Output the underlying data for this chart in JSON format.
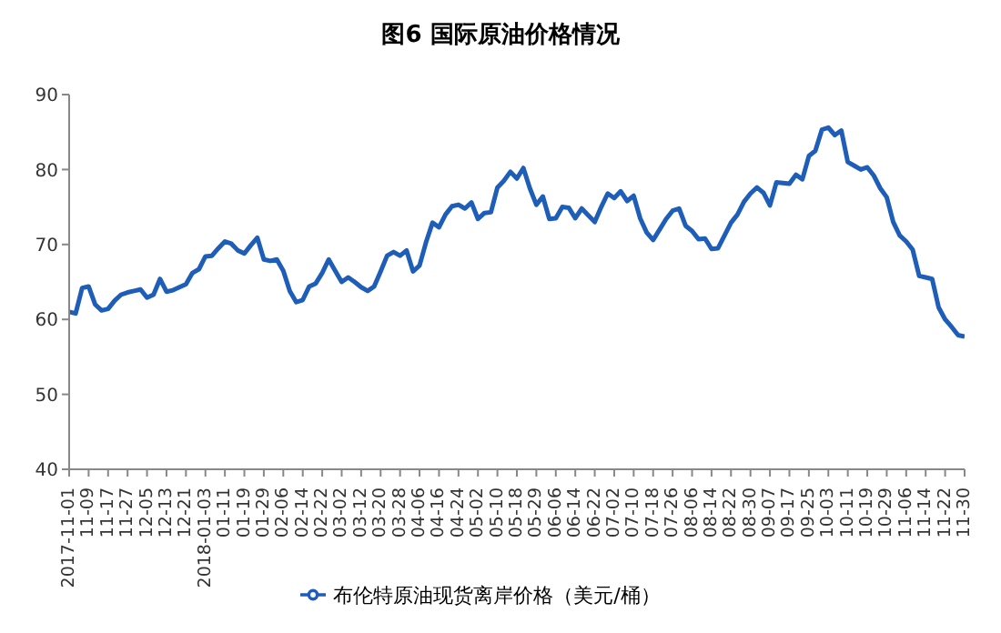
{
  "chart_data": {
    "type": "line",
    "title": "图6 国际原油价格情况",
    "categories": [
      "2017-11-01",
      null,
      null,
      "11-09",
      null,
      null,
      "11-17",
      null,
      null,
      "11-27",
      null,
      null,
      "12-05",
      null,
      null,
      "12-13",
      null,
      null,
      "12-21",
      null,
      null,
      "2018-01-03",
      null,
      null,
      "01-11",
      null,
      null,
      "01-19",
      null,
      null,
      "01-29",
      null,
      null,
      "02-06",
      null,
      null,
      "02-14",
      null,
      null,
      "02-22",
      null,
      null,
      "03-02",
      null,
      null,
      "03-12",
      null,
      null,
      "03-20",
      null,
      null,
      "03-28",
      null,
      null,
      "04-06",
      null,
      null,
      "04-16",
      null,
      null,
      "04-24",
      null,
      null,
      "05-02",
      null,
      null,
      "05-10",
      null,
      null,
      "05-18",
      null,
      null,
      "05-29",
      null,
      null,
      "06-06",
      null,
      null,
      "06-14",
      null,
      null,
      "06-22",
      null,
      null,
      "07-02",
      null,
      null,
      "07-10",
      null,
      null,
      "07-18",
      null,
      null,
      "07-26",
      null,
      null,
      "08-06",
      null,
      null,
      "08-14",
      null,
      null,
      "08-22",
      null,
      null,
      "08-30",
      null,
      null,
      "09-07",
      null,
      null,
      "09-17",
      null,
      null,
      "09-25",
      null,
      null,
      "10-03",
      null,
      null,
      "10-11",
      null,
      null,
      "10-19",
      null,
      null,
      "10-29",
      null,
      null,
      "11-06",
      null,
      null,
      "11-14",
      null,
      null,
      "11-22",
      null,
      null,
      "11-30"
    ],
    "series": [
      {
        "name": "布伦特原油现货离岸价格（美元/桶）",
        "color": "#1e5eb8",
        "values": [
          61.0,
          60.8,
          64.2,
          64.4,
          62.0,
          61.2,
          61.4,
          62.5,
          63.3,
          63.6,
          63.8,
          64.0,
          62.9,
          63.3,
          65.4,
          63.7,
          63.9,
          64.3,
          64.7,
          66.2,
          66.7,
          68.4,
          68.5,
          69.5,
          70.4,
          70.1,
          69.2,
          68.8,
          69.9,
          70.9,
          68.0,
          67.8,
          68.0,
          66.5,
          63.8,
          62.3,
          62.6,
          64.4,
          64.8,
          66.2,
          68.0,
          66.5,
          65.0,
          65.6,
          65.0,
          64.3,
          63.8,
          64.4,
          66.4,
          68.5,
          69.0,
          68.5,
          69.2,
          66.4,
          67.2,
          70.3,
          72.9,
          72.3,
          74.0,
          75.1,
          75.3,
          74.8,
          75.6,
          73.4,
          74.2,
          74.3,
          77.6,
          78.5,
          79.7,
          78.8,
          80.2,
          77.5,
          75.3,
          76.4,
          73.4,
          73.5,
          75.0,
          74.9,
          73.5,
          74.8,
          73.9,
          73.0,
          75.0,
          76.8,
          76.2,
          77.1,
          75.8,
          76.5,
          73.5,
          71.6,
          70.6,
          72.0,
          73.4,
          74.5,
          74.8,
          72.5,
          71.8,
          70.7,
          70.8,
          69.4,
          69.5,
          71.2,
          72.9,
          74.0,
          75.7,
          76.8,
          77.6,
          76.9,
          75.2,
          78.3,
          78.2,
          78.1,
          79.3,
          78.7,
          81.8,
          82.5,
          85.3,
          85.6,
          84.6,
          85.2,
          81.0,
          80.5,
          80.0,
          80.3,
          79.2,
          77.5,
          76.3,
          73.0,
          71.2,
          70.4,
          69.3,
          65.8,
          65.6,
          65.4,
          61.6,
          60.0,
          59.0,
          57.9,
          57.7
        ]
      }
    ],
    "ylim": [
      40,
      90
    ],
    "yticks": [
      40,
      50,
      60,
      70,
      80,
      90
    ],
    "grid": false,
    "legend": "bottom"
  }
}
